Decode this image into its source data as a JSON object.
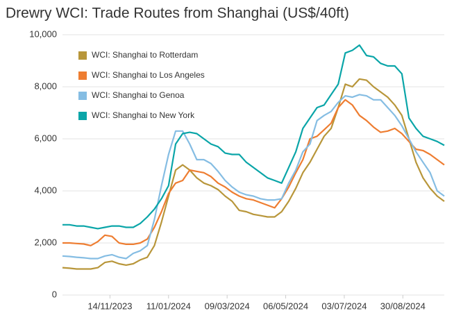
{
  "chart_data": {
    "type": "line",
    "title": "Drewry WCI: Trade Routes from Shanghai (US$/40ft)",
    "x": [
      "2023-09-28",
      "2023-10-05",
      "2023-10-12",
      "2023-10-19",
      "2023-10-26",
      "2023-11-02",
      "2023-11-09",
      "2023-11-16",
      "2023-11-23",
      "2023-11-30",
      "2023-12-07",
      "2023-12-14",
      "2023-12-21",
      "2023-12-28",
      "2024-01-04",
      "2024-01-11",
      "2024-01-18",
      "2024-01-25",
      "2024-02-01",
      "2024-02-08",
      "2024-02-15",
      "2024-02-22",
      "2024-02-29",
      "2024-03-07",
      "2024-03-14",
      "2024-03-21",
      "2024-03-28",
      "2024-04-04",
      "2024-04-11",
      "2024-04-18",
      "2024-04-25",
      "2024-05-02",
      "2024-05-09",
      "2024-05-16",
      "2024-05-23",
      "2024-05-30",
      "2024-06-06",
      "2024-06-13",
      "2024-06-20",
      "2024-06-27",
      "2024-07-04",
      "2024-07-11",
      "2024-07-18",
      "2024-07-25",
      "2024-08-01",
      "2024-08-08",
      "2024-08-15",
      "2024-08-22",
      "2024-08-29",
      "2024-09-05",
      "2024-09-12",
      "2024-09-19",
      "2024-09-26",
      "2024-10-03",
      "2024-10-10"
    ],
    "xlim": [
      "2023-09-28",
      "2024-10-10"
    ],
    "xticks": [
      {
        "value": "2023-11-14",
        "label": "14/11/2023"
      },
      {
        "value": "2024-01-11",
        "label": "11/01/2024"
      },
      {
        "value": "2024-03-09",
        "label": "09/03/2024"
      },
      {
        "value": "2024-05-06",
        "label": "06/05/2024"
      },
      {
        "value": "2024-07-03",
        "label": "03/07/2024"
      },
      {
        "value": "2024-08-30",
        "label": "30/08/2024"
      }
    ],
    "ylim": [
      0,
      10000
    ],
    "yticks": [
      0,
      {
        "value": 2000,
        "label": "2,000"
      },
      {
        "value": 4000,
        "label": "4,000"
      },
      {
        "value": 6000,
        "label": "6,000"
      },
      {
        "value": 8000,
        "label": "8,000"
      },
      {
        "value": 10000,
        "label": "10,000"
      }
    ],
    "grid": true,
    "legend": "upper-left",
    "series": [
      {
        "name": "WCI: Shanghai to Rotterdam",
        "color": "#b8963a",
        "values": [
          1050,
          1030,
          1000,
          1000,
          1000,
          1050,
          1250,
          1300,
          1200,
          1150,
          1200,
          1350,
          1450,
          1900,
          2800,
          3800,
          4800,
          5000,
          4800,
          4500,
          4300,
          4200,
          4050,
          3800,
          3600,
          3250,
          3200,
          3100,
          3050,
          3000,
          3000,
          3200,
          3600,
          4100,
          4700,
          5100,
          5600,
          6100,
          6400,
          7200,
          8100,
          8000,
          8300,
          8250,
          8000,
          7800,
          7600,
          7300,
          6900,
          6000,
          5100,
          4500,
          4100,
          3800,
          3600
        ]
      },
      {
        "name": "WCI: Shanghai to Los Angeles",
        "color": "#ee7d31",
        "values": [
          2000,
          2000,
          1980,
          1960,
          1900,
          2050,
          2300,
          2250,
          2000,
          1950,
          1950,
          2000,
          2150,
          2600,
          3200,
          3900,
          4300,
          4400,
          4800,
          4750,
          4700,
          4550,
          4300,
          4150,
          3950,
          3800,
          3700,
          3650,
          3550,
          3450,
          3350,
          3700,
          4150,
          4700,
          5200,
          6000,
          6100,
          6350,
          6600,
          7200,
          7500,
          7300,
          6900,
          6700,
          6450,
          6250,
          6300,
          6400,
          6200,
          5900,
          5600,
          5550,
          5400,
          5200,
          5000
        ]
      },
      {
        "name": "WCI: Shanghai to Genoa",
        "color": "#85bde3",
        "values": [
          1500,
          1480,
          1450,
          1430,
          1400,
          1400,
          1500,
          1550,
          1450,
          1400,
          1600,
          1700,
          1900,
          2900,
          4200,
          5400,
          6300,
          6300,
          5800,
          5200,
          5200,
          5050,
          4750,
          4400,
          4150,
          3950,
          3850,
          3800,
          3700,
          3650,
          3650,
          3700,
          4300,
          4800,
          5500,
          5800,
          6700,
          6900,
          7050,
          7400,
          7650,
          7600,
          7700,
          7650,
          7500,
          7500,
          7200,
          6900,
          6500,
          6000,
          5500,
          5100,
          4700,
          4000,
          3800
        ]
      },
      {
        "name": "WCI: Shanghai to New York",
        "color": "#0aa5a8",
        "values": [
          2700,
          2700,
          2650,
          2650,
          2600,
          2550,
          2600,
          2650,
          2650,
          2600,
          2600,
          2750,
          3000,
          3300,
          3700,
          4200,
          5800,
          6200,
          6250,
          6200,
          6000,
          5800,
          5700,
          5450,
          5400,
          5400,
          5100,
          4900,
          4700,
          4500,
          4400,
          4300,
          4900,
          5500,
          6400,
          6800,
          7200,
          7300,
          7700,
          8100,
          9300,
          9400,
          9600,
          9200,
          9150,
          8900,
          8800,
          8800,
          8500,
          6800,
          6400,
          6100,
          6000,
          5900,
          5750
        ]
      }
    ]
  }
}
